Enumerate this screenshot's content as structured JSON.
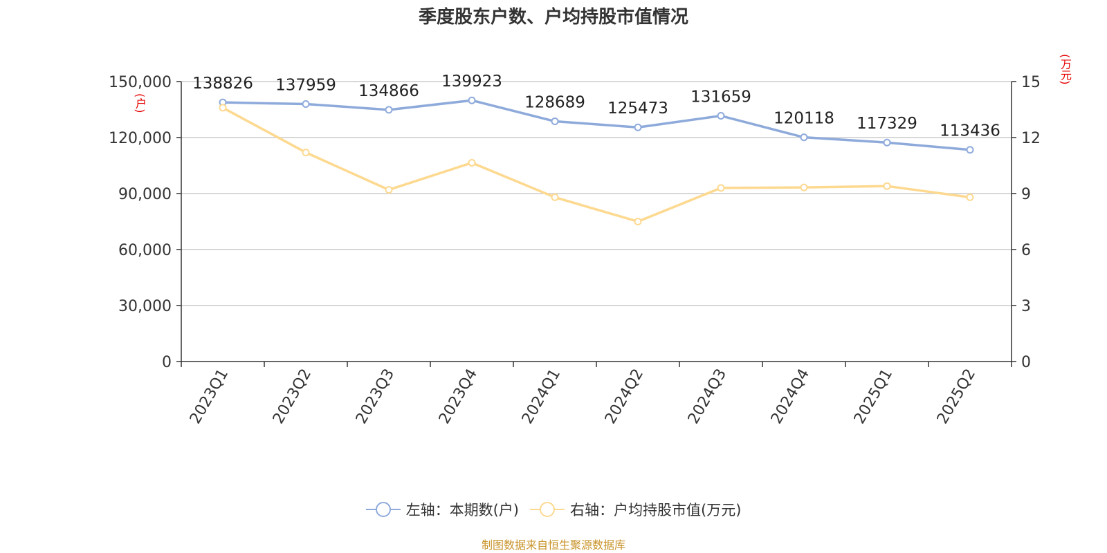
{
  "chart_data": {
    "type": "line",
    "title": "季度股东户数、户均持股市值情况",
    "categories": [
      "2023Q1",
      "2023Q2",
      "2023Q3",
      "2023Q4",
      "2024Q1",
      "2024Q2",
      "2024Q3",
      "2024Q4",
      "2025Q1",
      "2025Q2"
    ],
    "series": [
      {
        "name": "左轴：本期数(户)",
        "axis": "left",
        "color": "#8eaadb",
        "values": [
          138826,
          137959,
          134866,
          139923,
          128689,
          125473,
          131659,
          120118,
          117329,
          113436
        ],
        "show_labels": true
      },
      {
        "name": "右轴：户均持股市值(万元)",
        "axis": "right",
        "color": "#fdd990",
        "values": [
          13.6,
          11.2,
          9.2,
          10.65,
          8.8,
          7.5,
          9.3,
          9.33,
          9.4,
          8.8
        ],
        "show_labels": false
      }
    ],
    "y_left": {
      "unit": "(户)",
      "ylim": [
        0,
        150000
      ],
      "ticks": [
        0,
        30000,
        60000,
        90000,
        120000,
        150000
      ],
      "tick_labels": [
        "0",
        "30,000",
        "60,000",
        "90,000",
        "120,000",
        "150,000"
      ]
    },
    "y_right": {
      "unit": "(万元)",
      "ylim": [
        0,
        15
      ],
      "ticks": [
        0,
        3,
        6,
        9,
        12,
        15
      ],
      "tick_labels": [
        "0",
        "3",
        "6",
        "9",
        "12",
        "15"
      ]
    },
    "grid": true,
    "legend_position": "bottom"
  },
  "source": "制图数据来自恒生聚源数据库"
}
